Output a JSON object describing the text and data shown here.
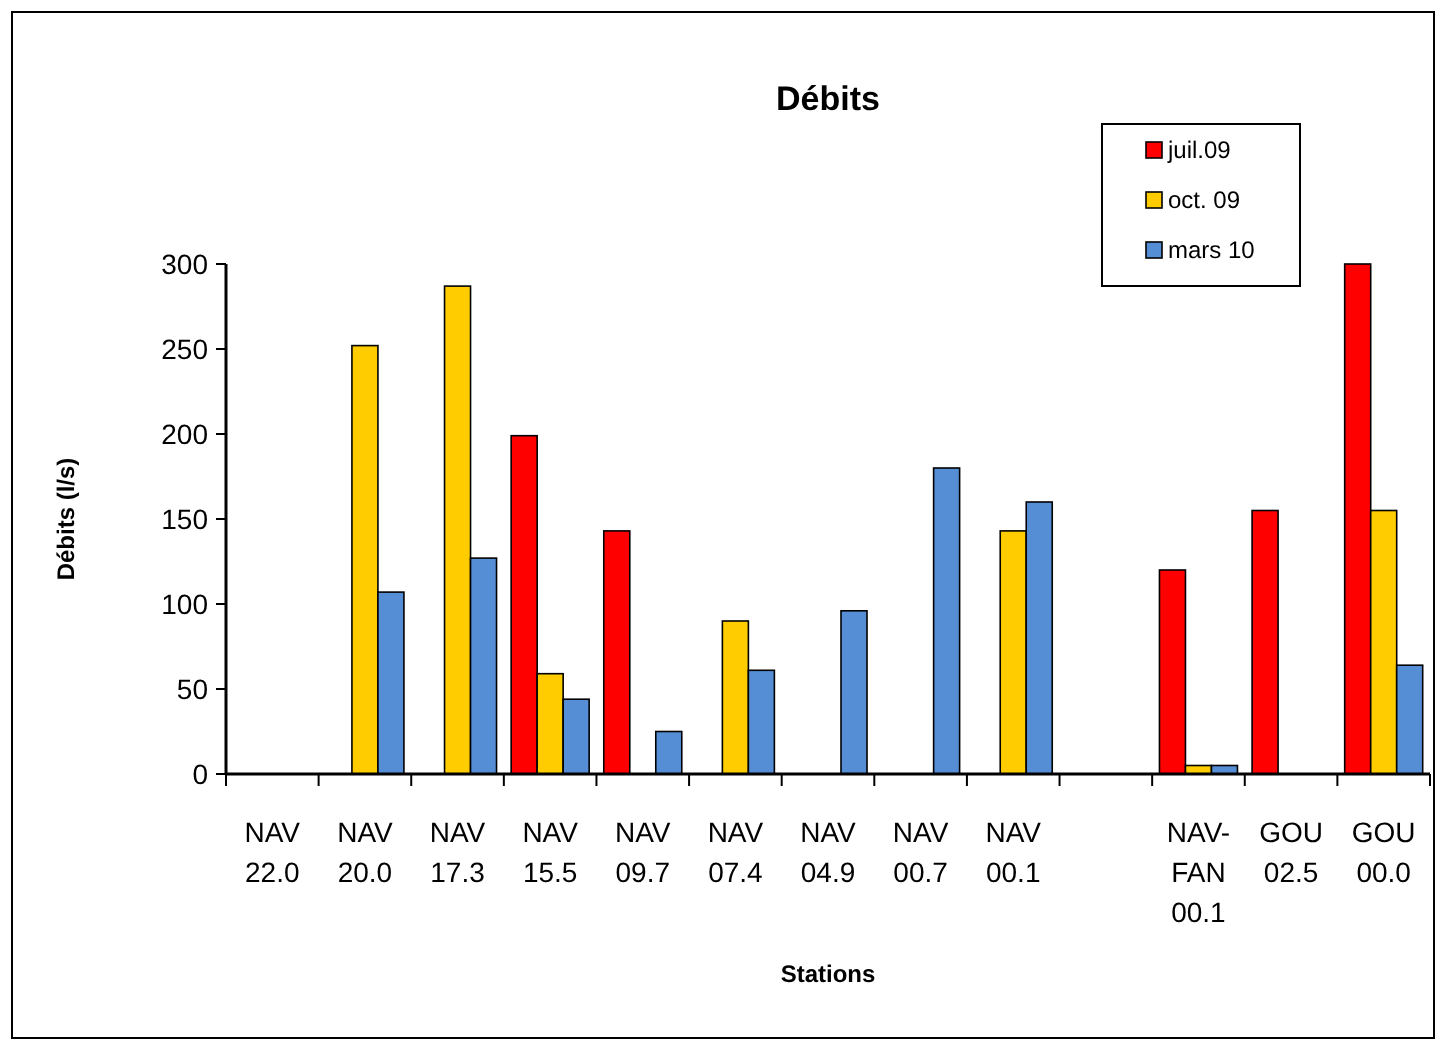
{
  "chart_data": {
    "type": "bar",
    "title": "Débits",
    "xlabel": "Stations",
    "ylabel": "Débits (l/s)",
    "categories": [
      "NAV 22.0",
      "NAV 20.0",
      "NAV 17.3",
      "NAV 15.5",
      "NAV 09.7",
      "NAV 07.4",
      "NAV 04.9",
      "NAV 00.7",
      "NAV 00.1",
      null,
      "NAV-FAN 00.1",
      "GOU 02.5",
      "GOU 00.0"
    ],
    "series": [
      {
        "name": "juil.09",
        "color": "#ff0000",
        "values": [
          null,
          null,
          null,
          199,
          143,
          null,
          null,
          null,
          null,
          null,
          120,
          155,
          300
        ]
      },
      {
        "name": "oct. 09",
        "color": "#ffcc00",
        "values": [
          null,
          252,
          287,
          59,
          null,
          90,
          null,
          null,
          143,
          null,
          5,
          null,
          155
        ]
      },
      {
        "name": "mars 10",
        "color": "#558ed5",
        "values": [
          null,
          107,
          127,
          44,
          25,
          61,
          96,
          180,
          160,
          null,
          5,
          null,
          64
        ]
      }
    ],
    "ylim": [
      0,
      300
    ],
    "yticks": [
      0,
      50,
      100,
      150,
      200,
      250,
      300
    ],
    "grid": false,
    "legend": "top right"
  }
}
